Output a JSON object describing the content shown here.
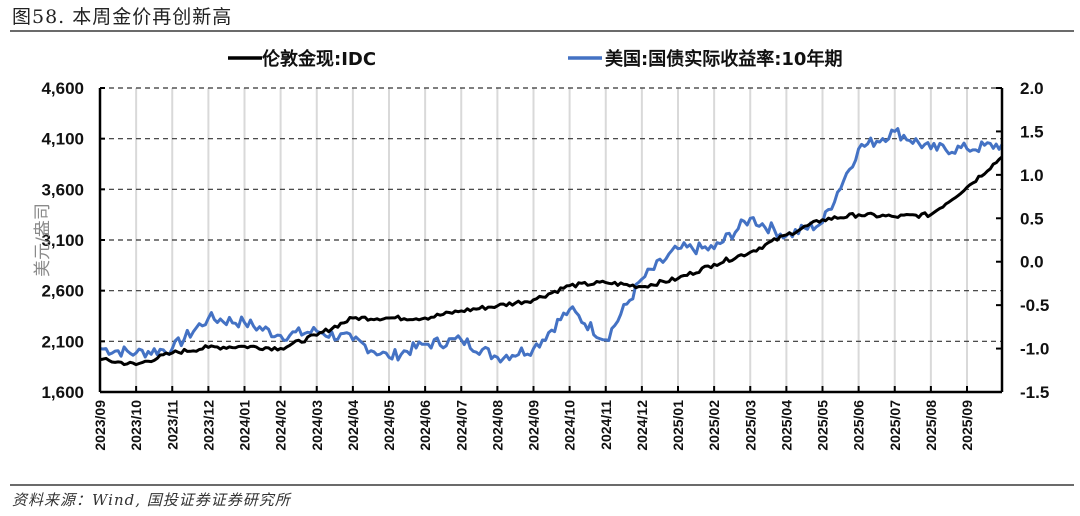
{
  "figure": {
    "title": "图58. 本周金价再创新高",
    "source": "资料来源：Wind, 国投证券证券研究所"
  },
  "colors": {
    "gold": "#000000",
    "yield": "#4472C4",
    "grid_h": "#333333",
    "grid_v": "#d9d9d9"
  },
  "chart_data": {
    "type": "line",
    "title": "本周金价再创新高",
    "xlabel": "",
    "ylabel": "美元/盎司",
    "ylabel_right": "%",
    "legend_position": "top",
    "grid": true,
    "ylim": [
      1600,
      4600
    ],
    "ylim_right": [
      -1.5,
      2.0
    ],
    "yticks": [
      "1,600",
      "2,100",
      "2,600",
      "3,100",
      "3,600",
      "4,100",
      "4,600"
    ],
    "yticks_right": [
      "-1.5",
      "-1.0",
      "-0.5",
      "0.0",
      "0.5",
      "1.0",
      "1.5",
      "2.0"
    ],
    "categories": [
      "2023/09",
      "2023/10",
      "2023/11",
      "2023/12",
      "2024/01",
      "2024/02",
      "2024/03",
      "2024/04",
      "2024/05",
      "2024/06",
      "2024/07",
      "2024/08",
      "2024/09",
      "2024/10",
      "2024/11",
      "2024/12",
      "2025/01",
      "2025/02",
      "2025/03",
      "2025/04",
      "2025/05",
      "2025/06",
      "2025/07",
      "2025/08",
      "2025/09"
    ],
    "series": [
      {
        "name": "伦敦金现:IDC",
        "axis": "left",
        "color": "#000000",
        "values": [
          1920,
          1870,
          1985,
          2040,
          2050,
          2030,
          2160,
          2330,
          2330,
          2330,
          2400,
          2450,
          2510,
          2650,
          2680,
          2640,
          2720,
          2860,
          2980,
          3150,
          3300,
          3350,
          3330,
          3350,
          3620
        ],
        "last": 3920
      },
      {
        "name": "美国:国债实际收益率:10年期",
        "axis": "right",
        "color": "#4472C4",
        "values": [
          -1.0,
          -1.05,
          -1.0,
          -0.65,
          -0.7,
          -0.85,
          -0.8,
          -0.9,
          -1.1,
          -0.95,
          -0.9,
          -1.1,
          -1.0,
          -0.55,
          -0.9,
          -0.2,
          0.15,
          0.15,
          0.5,
          0.3,
          0.45,
          1.3,
          1.5,
          1.3,
          1.3
        ],
        "last": 1.35
      }
    ]
  },
  "legend": [
    {
      "label": "伦敦金现:IDC",
      "color": "#000000"
    },
    {
      "label": "美国:国债实际收益率:10年期",
      "color": "#4472C4"
    }
  ],
  "axes": {
    "left_label": "美元/盎司"
  }
}
